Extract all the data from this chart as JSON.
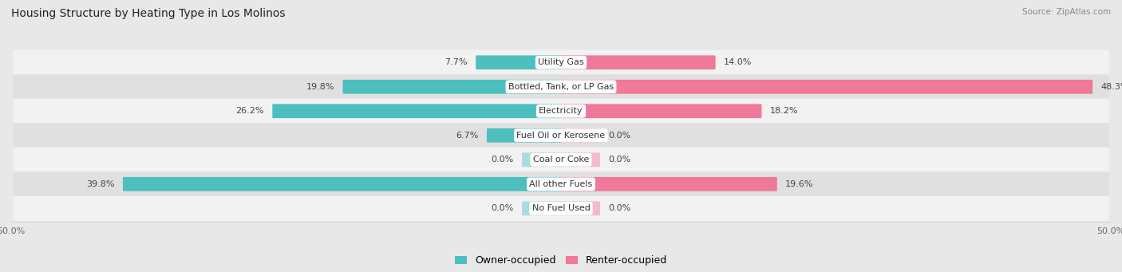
{
  "title": "Housing Structure by Heating Type in Los Molinos",
  "source": "Source: ZipAtlas.com",
  "categories": [
    "Utility Gas",
    "Bottled, Tank, or LP Gas",
    "Electricity",
    "Fuel Oil or Kerosene",
    "Coal or Coke",
    "All other Fuels",
    "No Fuel Used"
  ],
  "owner_values": [
    7.7,
    19.8,
    26.2,
    6.7,
    0.0,
    39.8,
    0.0
  ],
  "renter_values": [
    14.0,
    48.3,
    18.2,
    0.0,
    0.0,
    19.6,
    0.0
  ],
  "owner_color": "#4dbfbf",
  "renter_color": "#f07898",
  "owner_color_light": "#a8dede",
  "renter_color_light": "#f5b8cc",
  "stub_size": 3.5,
  "axis_max": 50.0,
  "background_color": "#e8e8e8",
  "row_colors": [
    "#f2f2f2",
    "#e0e0e0"
  ],
  "title_fontsize": 10,
  "label_fontsize": 8,
  "value_fontsize": 8,
  "tick_fontsize": 8,
  "legend_fontsize": 9
}
